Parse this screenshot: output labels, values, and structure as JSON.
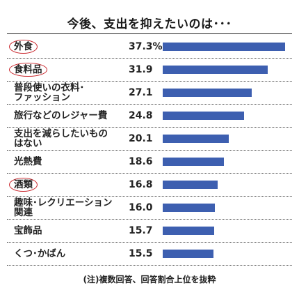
{
  "chart_data": {
    "type": "bar",
    "title": "今後、支出を抑えたいのは･･･",
    "categories": [
      "外食",
      "食料品",
      "普段使いの衣料･ファッション",
      "旅行などのレジャー費",
      "支出を減らしたいものはない",
      "光熱費",
      "酒類",
      "趣味･レクリエーション関連",
      "宝飾品",
      "くつ･かばん"
    ],
    "display_labels": [
      "外食",
      "食料品",
      "普段使いの衣料･\nファッション",
      "旅行などのレジャー費",
      "支出を減らしたいもの\nはない",
      "光熱費",
      "酒類",
      "趣味･レクリエーション\n関連",
      "宝飾品",
      "くつ･かばん"
    ],
    "value_labels": [
      "37.3%",
      "31.9",
      "27.1",
      "24.8",
      "20.1",
      "18.6",
      "16.8",
      "16.0",
      "15.7",
      "15.5"
    ],
    "values": [
      37.3,
      31.9,
      27.1,
      24.8,
      20.1,
      18.6,
      16.8,
      16.0,
      15.7,
      15.5
    ],
    "circled": [
      true,
      true,
      false,
      false,
      false,
      false,
      true,
      false,
      false,
      false
    ],
    "bar_color": "#3d5fb0",
    "circle_color": "#c9252b",
    "footnote": "(注)複数回答、回答割合上位を抜粋"
  }
}
